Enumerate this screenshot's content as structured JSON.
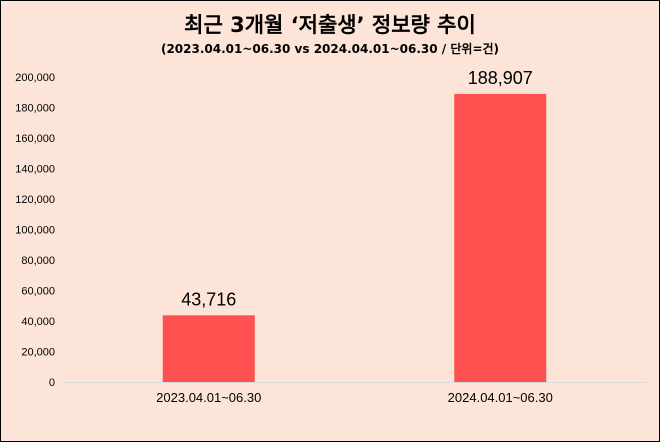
{
  "chart_data": {
    "type": "bar",
    "title": "최근 3개월 ‘저출생’ 정보량 추이",
    "subtitle": "(2023.04.01~06.30 vs 2024.04.01~06.30 / 단위=건)",
    "categories": [
      "2023.04.01~06.30",
      "2024.04.01~06.30"
    ],
    "values": [
      43716,
      188907
    ],
    "data_labels": [
      "43,716",
      "188,907"
    ],
    "y_ticks": [
      "0",
      "20,000",
      "40,000",
      "60,000",
      "80,000",
      "100,000",
      "120,000",
      "140,000",
      "160,000",
      "180,000",
      "200,000"
    ],
    "ylim": [
      0,
      200000
    ],
    "xlabel": "",
    "ylabel": "",
    "grid": false,
    "legend": "none",
    "colors": {
      "bar": "#ff5050",
      "background": "#fce5d8",
      "axis": "#d9d9d9"
    }
  }
}
